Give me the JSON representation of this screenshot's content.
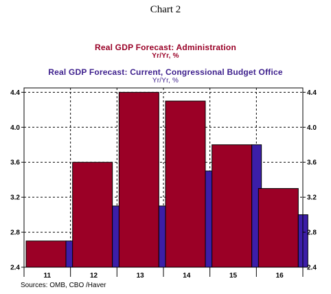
{
  "title": "Chart 2",
  "source": "Sources:  OMB, CBO /Haver",
  "colors": {
    "admin": "#9b0026",
    "cbo": "#3c1ea8",
    "axis": "#000000",
    "background": "#ffffff"
  },
  "chart_data": {
    "type": "bar",
    "categories": [
      "11",
      "12",
      "13",
      "14",
      "15",
      "16"
    ],
    "series": [
      {
        "name": "Real GDP Forecast: Administration",
        "unit": "Yr/Yr, %",
        "values": [
          2.7,
          3.6,
          4.4,
          4.3,
          3.8,
          3.3
        ]
      },
      {
        "name": "Real GDP Forecast: Current, Congressional Budget Office",
        "unit": "Yr/Yr, %",
        "values": [
          2.7,
          3.1,
          3.1,
          3.5,
          3.8,
          3.0
        ]
      }
    ],
    "yticks": [
      "2.4",
      "2.8",
      "3.2",
      "3.6",
      "4.0",
      "4.4"
    ],
    "ylim": [
      2.4,
      4.45
    ],
    "grid": true,
    "legend_position": "top"
  }
}
